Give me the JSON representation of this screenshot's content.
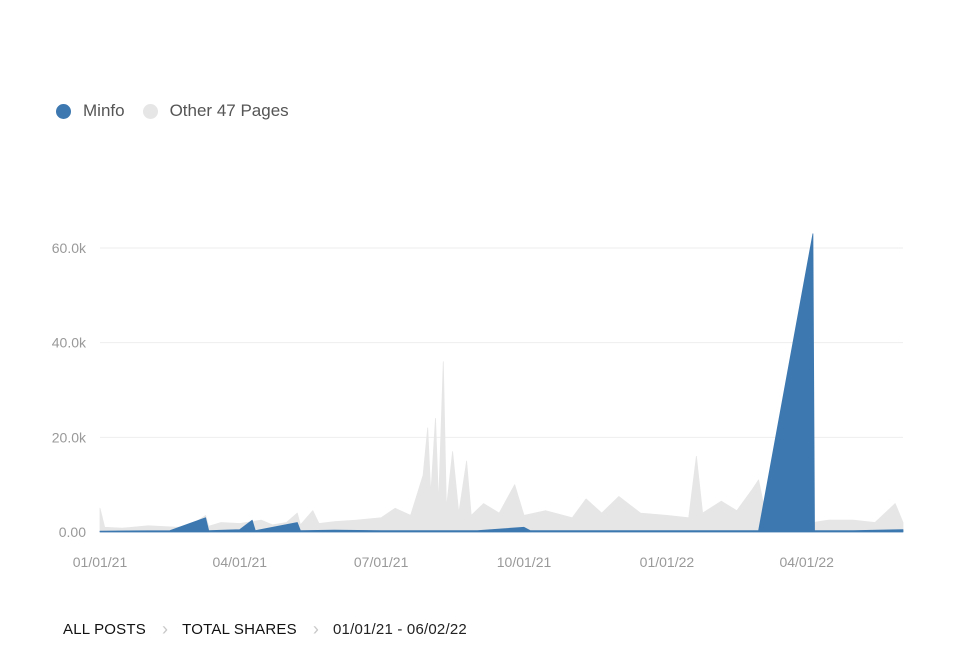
{
  "legend": [
    {
      "name": "Minfo",
      "color": "#3d78b0"
    },
    {
      "name": "Other 47 Pages",
      "color": "#e6e6e6"
    }
  ],
  "breadcrumb": {
    "items": [
      "ALL POSTS",
      "TOTAL SHARES",
      "01/01/21 - 06/02/22"
    ]
  },
  "chart_data": {
    "type": "area",
    "stacked": true,
    "x_range": [
      "2021-01-01",
      "2022-06-02"
    ],
    "x_ticks": [
      "01/01/21",
      "04/01/21",
      "07/01/21",
      "10/01/21",
      "01/01/22",
      "04/01/22"
    ],
    "y_ticks": [
      "0.00",
      "20.0k",
      "40.0k",
      "60.0k"
    ],
    "ylim": [
      0,
      60000
    ],
    "grid": true,
    "legend_position": "top-left",
    "series": [
      {
        "name": "Other 47 Pages",
        "color": "#e6e6e6",
        "points": [
          [
            "2021-01-01",
            5000
          ],
          [
            "2021-01-04",
            1000
          ],
          [
            "2021-01-15",
            800
          ],
          [
            "2021-02-01",
            1300
          ],
          [
            "2021-02-20",
            1000
          ],
          [
            "2021-03-01",
            1500
          ],
          [
            "2021-03-10",
            3500
          ],
          [
            "2021-03-12",
            1200
          ],
          [
            "2021-03-20",
            2000
          ],
          [
            "2021-04-01",
            1800
          ],
          [
            "2021-04-15",
            2500
          ],
          [
            "2021-04-22",
            1500
          ],
          [
            "2021-05-01",
            2000
          ],
          [
            "2021-05-08",
            4000
          ],
          [
            "2021-05-10",
            1500
          ],
          [
            "2021-05-18",
            4500
          ],
          [
            "2021-05-22",
            1800
          ],
          [
            "2021-06-01",
            2200
          ],
          [
            "2021-06-15",
            2500
          ],
          [
            "2021-07-01",
            3000
          ],
          [
            "2021-07-10",
            5000
          ],
          [
            "2021-07-20",
            3500
          ],
          [
            "2021-07-28",
            12000
          ],
          [
            "2021-07-31",
            22000
          ],
          [
            "2021-08-02",
            8000
          ],
          [
            "2021-08-05",
            24000
          ],
          [
            "2021-08-07",
            6000
          ],
          [
            "2021-08-10",
            36000
          ],
          [
            "2021-08-12",
            5000
          ],
          [
            "2021-08-16",
            17000
          ],
          [
            "2021-08-20",
            4000
          ],
          [
            "2021-08-25",
            15000
          ],
          [
            "2021-08-28",
            3500
          ],
          [
            "2021-09-05",
            6000
          ],
          [
            "2021-09-15",
            4000
          ],
          [
            "2021-09-25",
            10000
          ],
          [
            "2021-10-01",
            3500
          ],
          [
            "2021-10-15",
            4500
          ],
          [
            "2021-11-01",
            3000
          ],
          [
            "2021-11-10",
            7000
          ],
          [
            "2021-11-20",
            4000
          ],
          [
            "2021-12-01",
            7500
          ],
          [
            "2021-12-15",
            4000
          ],
          [
            "2022-01-01",
            3500
          ],
          [
            "2022-01-15",
            3000
          ],
          [
            "2022-01-20",
            16000
          ],
          [
            "2022-01-24",
            4000
          ],
          [
            "2022-02-05",
            6500
          ],
          [
            "2022-02-15",
            4500
          ],
          [
            "2022-02-25",
            9000
          ],
          [
            "2022-03-01",
            11000
          ],
          [
            "2022-03-05",
            4500
          ],
          [
            "2022-03-14",
            10000
          ],
          [
            "2022-03-20",
            25000
          ],
          [
            "2022-03-24",
            4000
          ],
          [
            "2022-03-28",
            9000
          ],
          [
            "2022-03-31",
            2500
          ],
          [
            "2022-04-05",
            2000
          ],
          [
            "2022-04-15",
            2500
          ],
          [
            "2022-05-01",
            2500
          ],
          [
            "2022-05-15",
            2000
          ],
          [
            "2022-05-28",
            6000
          ],
          [
            "2022-06-02",
            2000
          ]
        ]
      },
      {
        "name": "Minfo",
        "color": "#3d78b0",
        "points": [
          [
            "2021-01-01",
            200
          ],
          [
            "2021-02-15",
            300
          ],
          [
            "2021-03-10",
            3000
          ],
          [
            "2021-03-12",
            300
          ],
          [
            "2021-04-01",
            500
          ],
          [
            "2021-04-09",
            2500
          ],
          [
            "2021-04-11",
            300
          ],
          [
            "2021-05-08",
            2000
          ],
          [
            "2021-05-10",
            300
          ],
          [
            "2021-06-01",
            400
          ],
          [
            "2021-07-01",
            300
          ],
          [
            "2021-09-01",
            300
          ],
          [
            "2021-10-01",
            1000
          ],
          [
            "2021-10-05",
            300
          ],
          [
            "2022-01-01",
            300
          ],
          [
            "2022-03-01",
            300
          ],
          [
            "2022-04-05",
            63000
          ],
          [
            "2022-04-06",
            300
          ],
          [
            "2022-05-01",
            300
          ],
          [
            "2022-06-02",
            500
          ]
        ]
      }
    ]
  }
}
